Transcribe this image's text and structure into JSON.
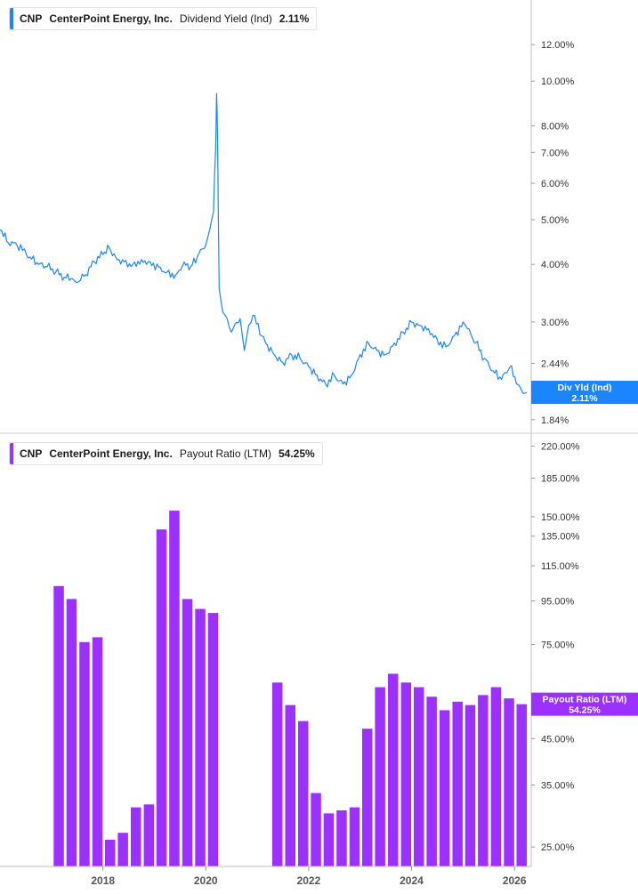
{
  "top_panel": {
    "ticker": "CNP",
    "company": "CenterPoint Energy, Inc.",
    "metric": "Dividend Yield (Ind)",
    "value": "2.11%",
    "color": "#1a85ff",
    "badge_label": "Div Yld (Ind)",
    "badge_value": "2.11%"
  },
  "bottom_panel": {
    "ticker": "CNP",
    "company": "CenterPoint Energy, Inc.",
    "metric": "Payout Ratio (LTM)",
    "value": "54.25%",
    "color": "#9b30ff",
    "badge_label": "Payout Ratio (LTM)",
    "badge_value": "54.25%"
  },
  "chart_data": [
    {
      "type": "line",
      "series": [
        {
          "name": "Dividend Yield (Ind)",
          "points": [
            [
              "2016-01-01",
              4.75
            ],
            [
              "2016-03-01",
              4.45
            ],
            [
              "2016-05-01",
              4.4
            ],
            [
              "2016-08-01",
              4.15
            ],
            [
              "2016-10-01",
              4.0
            ],
            [
              "2016-12-01",
              3.95
            ],
            [
              "2017-02-01",
              3.85
            ],
            [
              "2017-04-01",
              3.75
            ],
            [
              "2017-06-01",
              3.72
            ],
            [
              "2017-07-01",
              3.65
            ],
            [
              "2017-09-01",
              3.8
            ],
            [
              "2017-11-01",
              4.05
            ],
            [
              "2018-01-01",
              4.2
            ],
            [
              "2018-02-15",
              4.35
            ],
            [
              "2018-04-01",
              4.15
            ],
            [
              "2018-06-01",
              4.05
            ],
            [
              "2018-08-01",
              4.0
            ],
            [
              "2018-10-01",
              4.1
            ],
            [
              "2018-12-01",
              4.05
            ],
            [
              "2019-02-01",
              3.95
            ],
            [
              "2019-04-01",
              3.85
            ],
            [
              "2019-06-01",
              3.8
            ],
            [
              "2019-08-01",
              4.05
            ],
            [
              "2019-09-15",
              3.95
            ],
            [
              "2019-11-01",
              4.15
            ],
            [
              "2020-01-01",
              4.4
            ],
            [
              "2020-02-01",
              4.8
            ],
            [
              "2020-02-25",
              5.2
            ],
            [
              "2020-03-10",
              7.0
            ],
            [
              "2020-03-18",
              9.4
            ],
            [
              "2020-03-25",
              7.5
            ],
            [
              "2020-04-05",
              3.55
            ],
            [
              "2020-05-01",
              3.15
            ],
            [
              "2020-06-01",
              3.05
            ],
            [
              "2020-07-01",
              2.85
            ],
            [
              "2020-09-01",
              3.05
            ],
            [
              "2020-10-01",
              2.6
            ],
            [
              "2020-11-01",
              2.95
            ],
            [
              "2020-12-01",
              3.1
            ],
            [
              "2021-02-01",
              2.8
            ],
            [
              "2021-03-01",
              2.7
            ],
            [
              "2021-05-01",
              2.55
            ],
            [
              "2021-07-01",
              2.45
            ],
            [
              "2021-09-01",
              2.55
            ],
            [
              "2021-11-01",
              2.5
            ],
            [
              "2022-01-01",
              2.4
            ],
            [
              "2022-03-01",
              2.3
            ],
            [
              "2022-05-01",
              2.2
            ],
            [
              "2022-07-01",
              2.3
            ],
            [
              "2022-09-01",
              2.2
            ],
            [
              "2022-11-01",
              2.3
            ],
            [
              "2023-01-01",
              2.55
            ],
            [
              "2023-03-01",
              2.7
            ],
            [
              "2023-05-01",
              2.6
            ],
            [
              "2023-07-01",
              2.55
            ],
            [
              "2023-09-01",
              2.7
            ],
            [
              "2023-11-01",
              2.85
            ],
            [
              "2024-01-01",
              3.0
            ],
            [
              "2024-03-01",
              2.95
            ],
            [
              "2024-05-01",
              2.9
            ],
            [
              "2024-07-01",
              2.75
            ],
            [
              "2024-09-01",
              2.65
            ],
            [
              "2024-11-01",
              2.8
            ],
            [
              "2025-01-01",
              3.0
            ],
            [
              "2025-02-01",
              2.9
            ],
            [
              "2025-04-01",
              2.7
            ],
            [
              "2025-06-01",
              2.5
            ],
            [
              "2025-08-01",
              2.35
            ],
            [
              "2025-10-01",
              2.25
            ],
            [
              "2025-12-01",
              2.4
            ],
            [
              "2026-01-15",
              2.2
            ],
            [
              "2026-02-15",
              2.15
            ],
            [
              "2026-03-31",
              2.11
            ]
          ]
        }
      ],
      "y_scale": "log",
      "ylim": [
        1.84,
        13.5
      ],
      "y_ticks": [
        "12.00%",
        "10.00%",
        "8.00%",
        "7.00%",
        "6.00%",
        "5.00%",
        "4.00%",
        "3.00%",
        "2.44%",
        "1.84%"
      ],
      "y_tick_values": [
        12.0,
        10.0,
        8.0,
        7.0,
        6.0,
        5.0,
        4.0,
        3.0,
        2.44,
        1.84
      ],
      "xlim": [
        "2016-01-01",
        "2026-04-30"
      ],
      "grid": false,
      "legend": "top-left",
      "last_value_label": "2.11%"
    },
    {
      "type": "bar",
      "series": [
        {
          "name": "Payout Ratio (LTM)",
          "points": [
            [
              "2017-03-31",
              103
            ],
            [
              "2017-06-30",
              96
            ],
            [
              "2017-09-30",
              76
            ],
            [
              "2017-12-31",
              78
            ],
            [
              "2018-03-31",
              26
            ],
            [
              "2018-06-30",
              27
            ],
            [
              "2018-09-30",
              31
            ],
            [
              "2018-12-31",
              31.5
            ],
            [
              "2019-03-31",
              140
            ],
            [
              "2019-06-30",
              155
            ],
            [
              "2019-09-30",
              96
            ],
            [
              "2019-12-31",
              91
            ],
            [
              "2020-03-31",
              89
            ],
            [
              "2021-06-30",
              61
            ],
            [
              "2021-09-30",
              54
            ],
            [
              "2021-12-31",
              49.5
            ],
            [
              "2022-03-31",
              33.5
            ],
            [
              "2022-06-30",
              30
            ],
            [
              "2022-09-30",
              30.5
            ],
            [
              "2022-12-31",
              31
            ],
            [
              "2023-03-31",
              47.5
            ],
            [
              "2023-06-30",
              59.5
            ],
            [
              "2023-09-30",
              64
            ],
            [
              "2023-12-31",
              61
            ],
            [
              "2024-03-31",
              59.5
            ],
            [
              "2024-06-30",
              56.5
            ],
            [
              "2024-09-30",
              52.5
            ],
            [
              "2024-12-31",
              55
            ],
            [
              "2025-03-31",
              54
            ],
            [
              "2025-06-30",
              57
            ],
            [
              "2025-09-30",
              59.5
            ],
            [
              "2025-12-31",
              56
            ],
            [
              "2026-03-31",
              54.25
            ]
          ]
        }
      ],
      "y_scale": "log",
      "ylim": [
        23,
        224
      ],
      "y_ticks": [
        "220.00%",
        "185.00%",
        "150.00%",
        "135.00%",
        "115.00%",
        "95.00%",
        "75.00%",
        "45.00%",
        "35.00%",
        "25.00%"
      ],
      "y_tick_values": [
        220,
        185,
        150,
        135,
        115,
        95,
        75,
        45,
        35,
        25
      ],
      "x_tick_labels": [
        "2018",
        "2020",
        "2022",
        "2024",
        "2026"
      ],
      "xlim": [
        "2016-01-01",
        "2026-04-30"
      ],
      "grid": false,
      "legend": "top-left",
      "last_value_label": "54.25%"
    }
  ]
}
